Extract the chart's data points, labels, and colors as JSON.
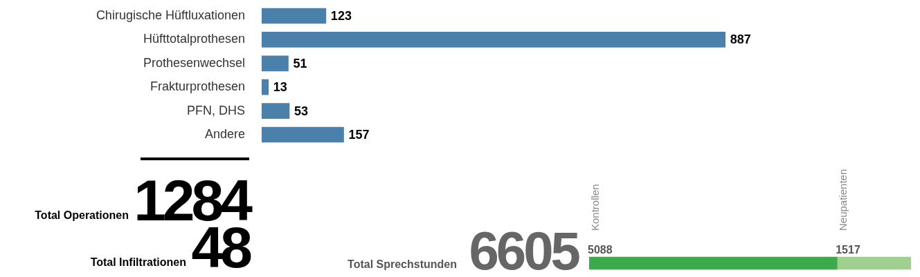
{
  "chart_data": [
    {
      "type": "bar",
      "orientation": "horizontal",
      "categories": [
        "Chirugische Hüftluxationen",
        "Hüfttotalprothesen",
        "Prothesenwechsel",
        "Frakturprothesen",
        "PFN, DHS",
        "Andere"
      ],
      "values": [
        123,
        887,
        51,
        13,
        53,
        157
      ],
      "color": "#4b80aa",
      "data_labels": true,
      "grid": false,
      "legend": false
    },
    {
      "type": "other",
      "annotations": [
        "Total Operationen",
        "1284",
        "Total Infiltrationen",
        "48",
        "Total Sprechstunden",
        "6605"
      ]
    },
    {
      "type": "bar",
      "orientation": "horizontal",
      "stacked": true,
      "categories": [
        null
      ],
      "series": [
        {
          "name": "Kontrollen",
          "color": "#3aaa4a",
          "values": [
            5088
          ]
        },
        {
          "name": "Neupatienten",
          "color": "#9fd08f",
          "values": [
            1517
          ]
        }
      ],
      "data_labels": true,
      "grid": false,
      "legend": false
    }
  ]
}
